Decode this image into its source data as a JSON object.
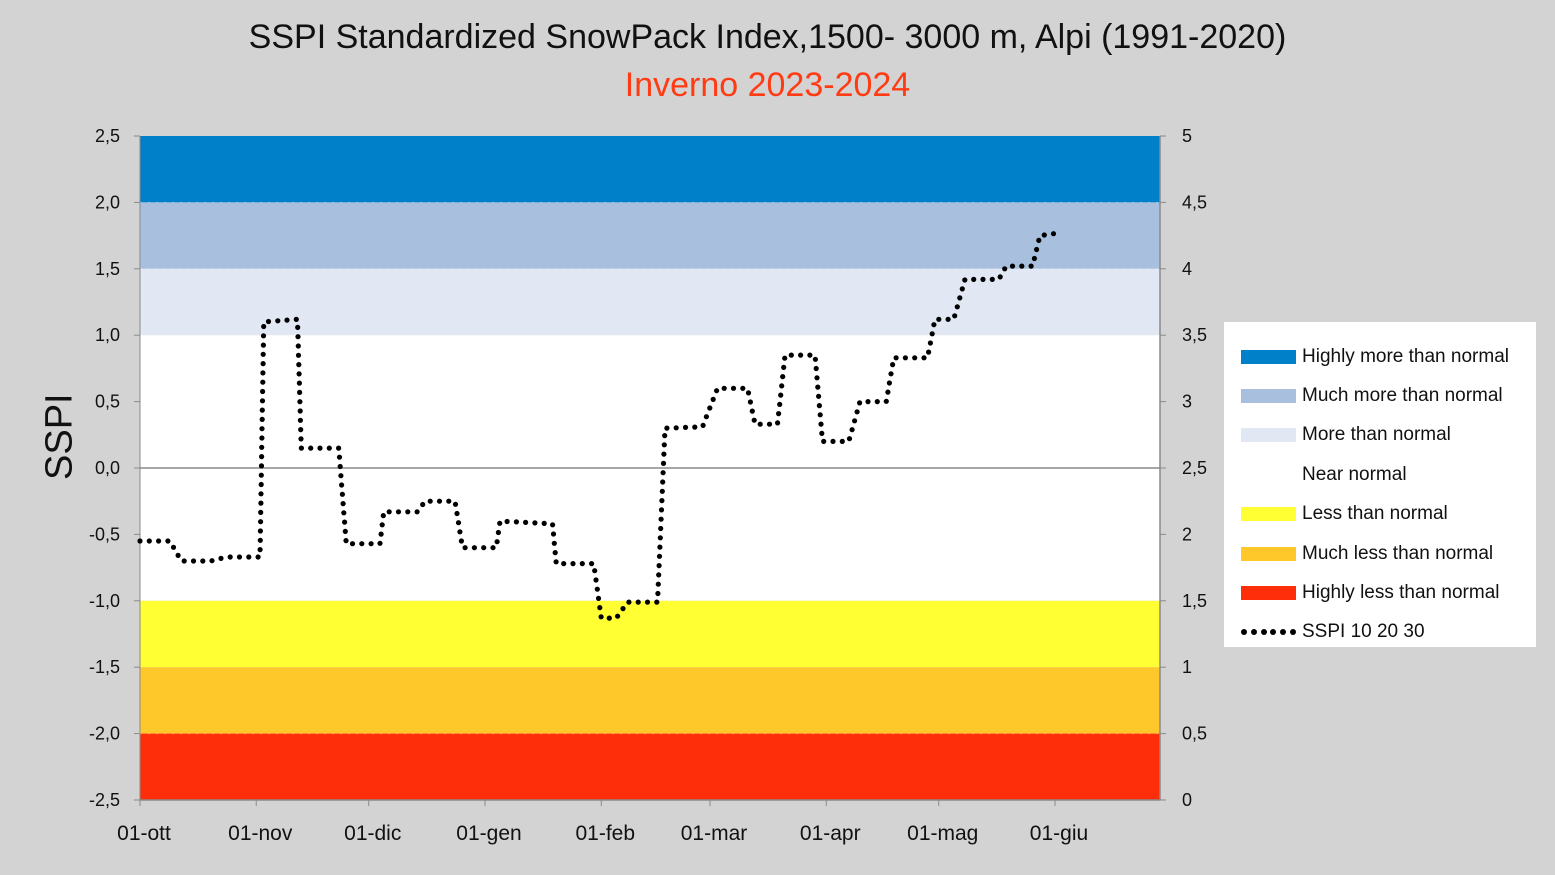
{
  "chart_data": {
    "type": "line",
    "title": "SSPI Standardized SnowPack Index,1500- 3000 m, Alpi (1991-2020)",
    "subtitle": "Inverno 2023-2024",
    "subtitle_color": "#ff3b14",
    "ylabel": "SSPI",
    "ylim": [
      -2.5,
      2.5
    ],
    "y2lim": [
      0,
      5
    ],
    "y_ticks": [
      "-2,5",
      "-2,0",
      "-1,5",
      "-1,0",
      "-0,5",
      "0,0",
      "0,5",
      "1,0",
      "1,5",
      "2,0",
      "2,5"
    ],
    "y2_ticks": [
      "0",
      "0,5",
      "1",
      "1,5",
      "2",
      "2,5",
      "3",
      "3,5",
      "4",
      "4,5",
      "5"
    ],
    "x_range_days": [
      0,
      272
    ],
    "x_ticks": [
      {
        "label": "01-ott",
        "day": 0
      },
      {
        "label": "01-nov",
        "day": 31
      },
      {
        "label": "01-dic",
        "day": 61
      },
      {
        "label": "01-gen",
        "day": 92
      },
      {
        "label": "01-feb",
        "day": 123
      },
      {
        "label": "01-mar",
        "day": 152
      },
      {
        "label": "01-apr",
        "day": 183
      },
      {
        "label": "01-mag",
        "day": 213
      },
      {
        "label": "01-giu",
        "day": 244
      }
    ],
    "bands": [
      {
        "label": "Highly more than normal",
        "from": 2.0,
        "to": 2.5,
        "color": "#0080c8"
      },
      {
        "label": "Much more than normal",
        "from": 1.5,
        "to": 2.0,
        "color": "#a8c0dd"
      },
      {
        "label": "More than normal",
        "from": 1.0,
        "to": 1.5,
        "color": "#e1e8f3"
      },
      {
        "label": "Near normal",
        "from": -1.0,
        "to": 1.0,
        "color": "#ffffff"
      },
      {
        "label": "Less than normal",
        "from": -1.5,
        "to": -1.0,
        "color": "#ffff33"
      },
      {
        "label": "Much less than normal",
        "from": -2.0,
        "to": -1.5,
        "color": "#ffc82a"
      },
      {
        "label": "Highly less than normal",
        "from": -2.5,
        "to": -2.0,
        "color": "#ff2e0a"
      }
    ],
    "series": [
      {
        "name": "SSPI 10 20 30",
        "style": "dotted",
        "color": "#000000",
        "points": [
          [
            0,
            -0.55
          ],
          [
            8,
            -0.55
          ],
          [
            11,
            -0.7
          ],
          [
            19,
            -0.7
          ],
          [
            23,
            -0.67
          ],
          [
            32,
            -0.67
          ],
          [
            33,
            1.1
          ],
          [
            42,
            1.12
          ],
          [
            43,
            0.15
          ],
          [
            53,
            0.15
          ],
          [
            55,
            -0.57
          ],
          [
            64,
            -0.57
          ],
          [
            65,
            -0.33
          ],
          [
            74,
            -0.33
          ],
          [
            76,
            -0.25
          ],
          [
            84,
            -0.25
          ],
          [
            86,
            -0.6
          ],
          [
            95,
            -0.6
          ],
          [
            96,
            -0.4
          ],
          [
            110,
            -0.42
          ],
          [
            111,
            -0.72
          ],
          [
            121,
            -0.72
          ],
          [
            123,
            -1.13
          ],
          [
            127,
            -1.13
          ],
          [
            130,
            -1.01
          ],
          [
            138,
            -1.01
          ],
          [
            140,
            0.3
          ],
          [
            150,
            0.31
          ],
          [
            154,
            0.6
          ],
          [
            162,
            0.6
          ],
          [
            164,
            0.33
          ],
          [
            170,
            0.33
          ],
          [
            172,
            0.85
          ],
          [
            180,
            0.85
          ],
          [
            182,
            0.2
          ],
          [
            189,
            0.2
          ],
          [
            192,
            0.5
          ],
          [
            199,
            0.5
          ],
          [
            201,
            0.83
          ],
          [
            210,
            0.83
          ],
          [
            212,
            1.12
          ],
          [
            217,
            1.12
          ],
          [
            220,
            1.42
          ],
          [
            229,
            1.42
          ],
          [
            231,
            1.52
          ],
          [
            238,
            1.52
          ],
          [
            240,
            1.75
          ],
          [
            245,
            1.77
          ]
        ]
      }
    ],
    "legend": [
      {
        "label": "Highly more than normal",
        "kind": "band",
        "color": "#0080c8"
      },
      {
        "label": "Much more than normal",
        "kind": "band",
        "color": "#a8c0dd"
      },
      {
        "label": "More than normal",
        "kind": "band",
        "color": "#e1e8f3"
      },
      {
        "label": "Near normal",
        "kind": "band",
        "color": "#ffffff"
      },
      {
        "label": "Less than normal",
        "kind": "band",
        "color": "#ffff33"
      },
      {
        "label": "Much less than normal",
        "kind": "band",
        "color": "#ffc82a"
      },
      {
        "label": "Highly less than normal",
        "kind": "band",
        "color": "#ff2e0a"
      },
      {
        "label": "SSPI 10 20 30",
        "kind": "dots",
        "color": "#000000"
      }
    ]
  }
}
